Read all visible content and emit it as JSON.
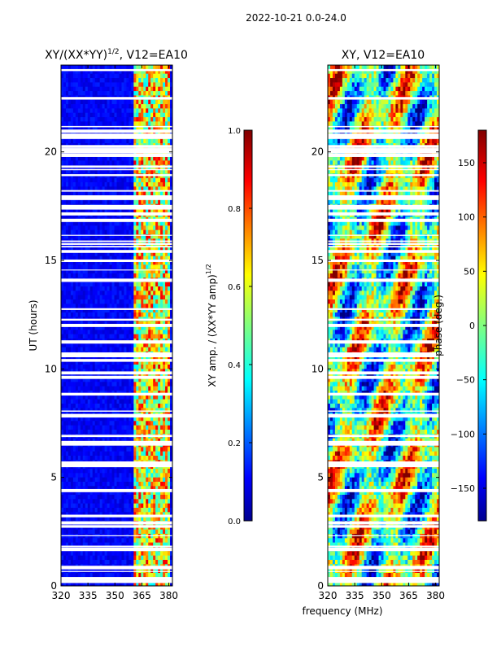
{
  "suptitle": "2022-10-21 0.0-24.0",
  "shared_xlabel": "frequency (MHz)",
  "colors": {
    "background_low": "#00008f",
    "gap": "#ffffff"
  },
  "chart_data": [
    {
      "type": "heatmap",
      "title_main": "XY/(XX*YY)",
      "title_sup": "1/2",
      "title_tail": ", V12=EA10",
      "ylabel": "UT (hours)",
      "xlim": [
        320,
        382
      ],
      "ylim": [
        0,
        24
      ],
      "x_ticks": [
        320,
        335,
        350,
        365,
        380
      ],
      "y_ticks": [
        0,
        5,
        10,
        15,
        20
      ],
      "bright_band_mhz": [
        360,
        380
      ],
      "colorbar": {
        "label_main": "XY amp. / (XX*YY amp)",
        "label_sup": "1/2",
        "range": [
          0.0,
          1.0
        ],
        "ticks": [
          "0.0",
          "0.2",
          "0.4",
          "0.6",
          "0.8",
          "1.0"
        ]
      }
    },
    {
      "type": "heatmap",
      "title": "XY, V12=EA10",
      "xlim": [
        320,
        382
      ],
      "ylim": [
        0,
        24
      ],
      "x_ticks": [
        320,
        335,
        350,
        365,
        380
      ],
      "y_ticks": [
        0,
        5,
        10,
        15,
        20
      ],
      "colorbar": {
        "label": "phase (deg.)",
        "range": [
          -180,
          180
        ],
        "ticks": [
          "−150",
          "−100",
          "−50",
          "0",
          "50",
          "100",
          "150"
        ],
        "tick_values": [
          -150,
          -100,
          -50,
          0,
          50,
          100,
          150
        ]
      }
    }
  ]
}
